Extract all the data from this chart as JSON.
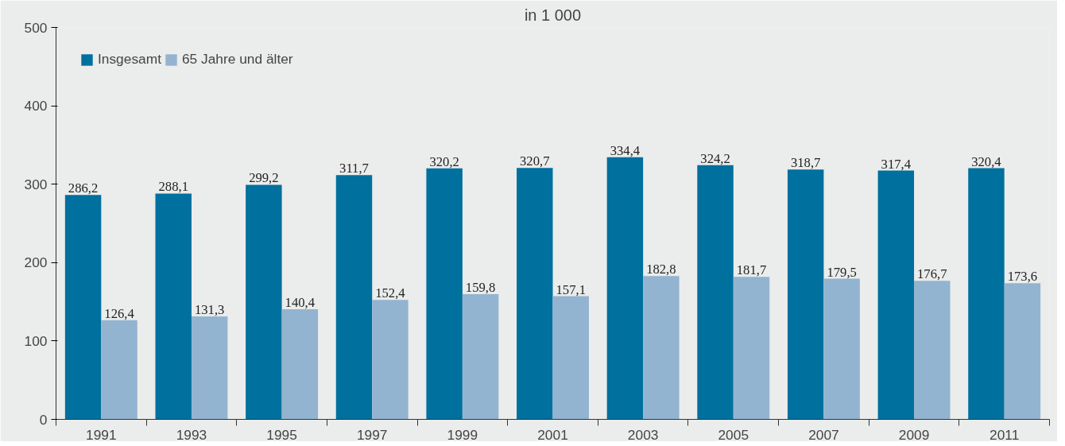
{
  "chart_data": {
    "type": "bar",
    "title": "in 1 000",
    "categories": [
      "1991",
      "1993",
      "1995",
      "1997",
      "1999",
      "2001",
      "2003",
      "2005",
      "2007",
      "2009",
      "2011"
    ],
    "series": [
      {
        "name": "Insgesamt",
        "color": "#00709e",
        "values": [
          286.2,
          288.1,
          299.2,
          311.7,
          320.2,
          320.7,
          334.4,
          324.2,
          318.7,
          317.4,
          320.4
        ],
        "value_labels": [
          "286,2",
          "288,1",
          "299,2",
          "311,7",
          "320,2",
          "320,7",
          "334,4",
          "324,2",
          "318,7",
          "317,4",
          "320,4"
        ]
      },
      {
        "name": "65 Jahre und älter",
        "color": "#92b4d0",
        "values": [
          126.4,
          131.3,
          140.4,
          152.4,
          159.8,
          157.1,
          182.8,
          181.7,
          179.5,
          176.7,
          173.6
        ],
        "value_labels": [
          "126,4",
          "131,3",
          "140,4",
          "152,4",
          "159,8",
          "157,1",
          "182,8",
          "181,7",
          "179,5",
          "176,7",
          "173,6"
        ]
      }
    ],
    "ylim": [
      0,
      500
    ],
    "yticks": [
      0,
      100,
      200,
      300,
      400,
      500
    ],
    "grid": false,
    "legend": "top left"
  }
}
